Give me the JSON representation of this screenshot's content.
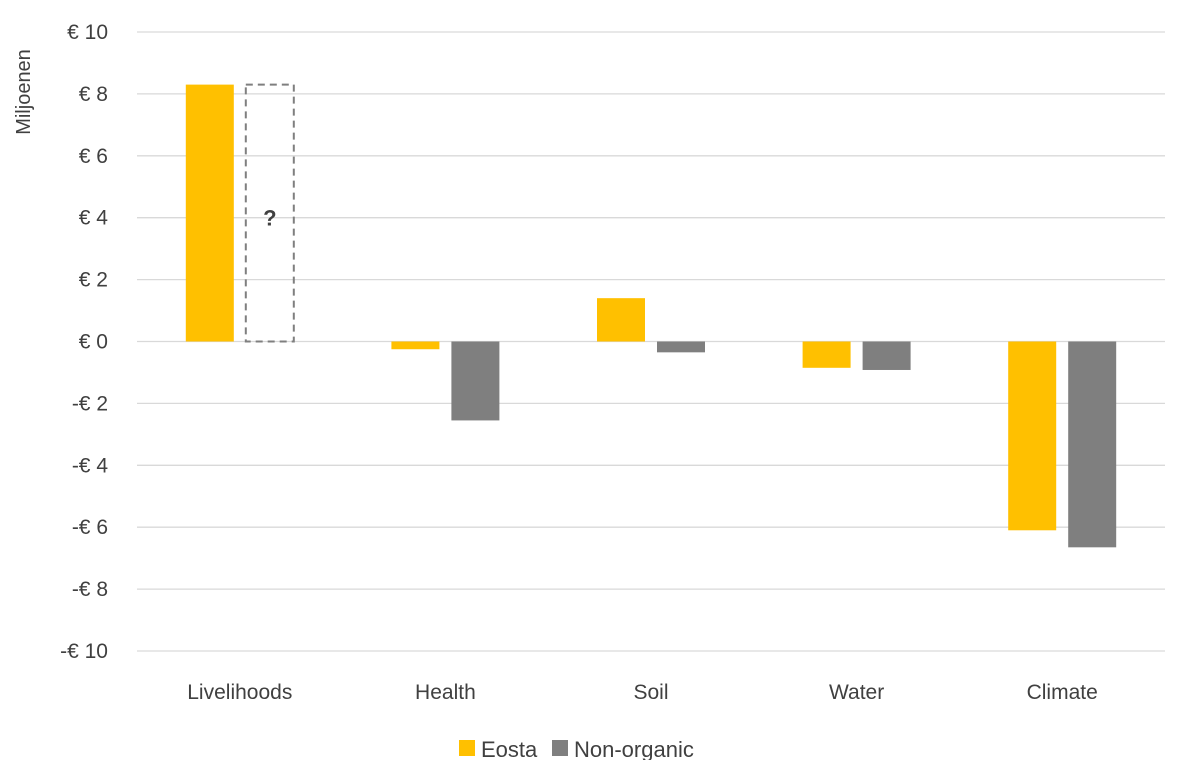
{
  "chart_data": {
    "type": "bar",
    "ylabel": "Miljoenen",
    "ylim": [
      -10,
      10
    ],
    "yticks": [
      10,
      8,
      6,
      4,
      2,
      0,
      -2,
      -4,
      -6,
      -8,
      -10
    ],
    "ytick_labels": [
      "€ 10",
      "€ 8",
      "€ 6",
      "€ 4",
      "€ 2",
      "€ 0",
      "-€ 2",
      "-€ 4",
      "-€ 6",
      "-€ 8",
      "-€ 10"
    ],
    "grid": true,
    "legend_position": "bottom",
    "categories": [
      "Livelihoods",
      "Health",
      "Soil",
      "Water",
      "Climate"
    ],
    "series": [
      {
        "name": "Eosta",
        "color": "#FFC000",
        "values": [
          8.3,
          -0.25,
          1.4,
          -0.85,
          -6.1
        ]
      },
      {
        "name": "Non-organic",
        "color": "#7F7F7F",
        "values": [
          null,
          -2.55,
          -0.35,
          -0.92,
          -6.65
        ]
      }
    ],
    "unknown_marker": {
      "category": "Livelihoods",
      "series": "Non-organic",
      "value": 8.3,
      "label": "?"
    }
  }
}
